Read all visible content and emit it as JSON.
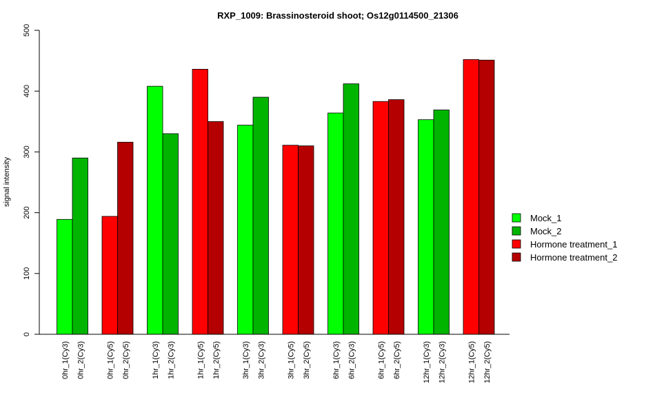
{
  "chart_data": {
    "type": "bar",
    "title": "RXP_1009: Brassinosteroid shoot; Os12g0114500_21306",
    "xlabel": "",
    "ylabel": "signal intensity",
    "ylim": [
      0,
      500
    ],
    "yticks": [
      0,
      100,
      200,
      300,
      400,
      500
    ],
    "legend_position": "right",
    "series_legend": [
      {
        "name": "Mock_1",
        "color": "#00FF00"
      },
      {
        "name": "Mock_2",
        "color": "#00B400"
      },
      {
        "name": "Hormone treatment_1",
        "color": "#FF0000"
      },
      {
        "name": "Hormone treatment_2",
        "color": "#B40000"
      }
    ],
    "groups": [
      {
        "bars": [
          {
            "label": "0hr_1(Cy3)",
            "value": 189,
            "series": "Mock_1"
          },
          {
            "label": "0hr_2(Cy3)",
            "value": 290,
            "series": "Mock_2"
          }
        ]
      },
      {
        "bars": [
          {
            "label": "0hr_1(Cy5)",
            "value": 194,
            "series": "Hormone treatment_1"
          },
          {
            "label": "0hr_2(Cy5)",
            "value": 316,
            "series": "Hormone treatment_2"
          }
        ]
      },
      {
        "bars": [
          {
            "label": "1hr_1(Cy3)",
            "value": 408,
            "series": "Mock_1"
          },
          {
            "label": "1hr_2(Cy3)",
            "value": 330,
            "series": "Mock_2"
          }
        ]
      },
      {
        "bars": [
          {
            "label": "1hr_1(Cy5)",
            "value": 436,
            "series": "Hormone treatment_1"
          },
          {
            "label": "1hr_2(Cy5)",
            "value": 350,
            "series": "Hormone treatment_2"
          }
        ]
      },
      {
        "bars": [
          {
            "label": "3hr_1(Cy3)",
            "value": 344,
            "series": "Mock_1"
          },
          {
            "label": "3hr_2(Cy3)",
            "value": 390,
            "series": "Mock_2"
          }
        ]
      },
      {
        "bars": [
          {
            "label": "3hr_1(Cy5)",
            "value": 311,
            "series": "Hormone treatment_1"
          },
          {
            "label": "3hr_2(Cy5)",
            "value": 310,
            "series": "Hormone treatment_2"
          }
        ]
      },
      {
        "bars": [
          {
            "label": "6hr_1(Cy3)",
            "value": 364,
            "series": "Mock_1"
          },
          {
            "label": "6hr_2(Cy3)",
            "value": 412,
            "series": "Mock_2"
          }
        ]
      },
      {
        "bars": [
          {
            "label": "6hr_1(Cy5)",
            "value": 383,
            "series": "Hormone treatment_1"
          },
          {
            "label": "6hr_2(Cy5)",
            "value": 386,
            "series": "Hormone treatment_2"
          }
        ]
      },
      {
        "bars": [
          {
            "label": "12hr_1(Cy3)",
            "value": 353,
            "series": "Mock_1"
          },
          {
            "label": "12hr_2(Cy3)",
            "value": 369,
            "series": "Mock_2"
          }
        ]
      },
      {
        "bars": [
          {
            "label": "12hr_1(Cy5)",
            "value": 452,
            "series": "Hormone treatment_1"
          },
          {
            "label": "12hr_2(Cy5)",
            "value": 451,
            "series": "Hormone treatment_2"
          }
        ]
      }
    ]
  }
}
